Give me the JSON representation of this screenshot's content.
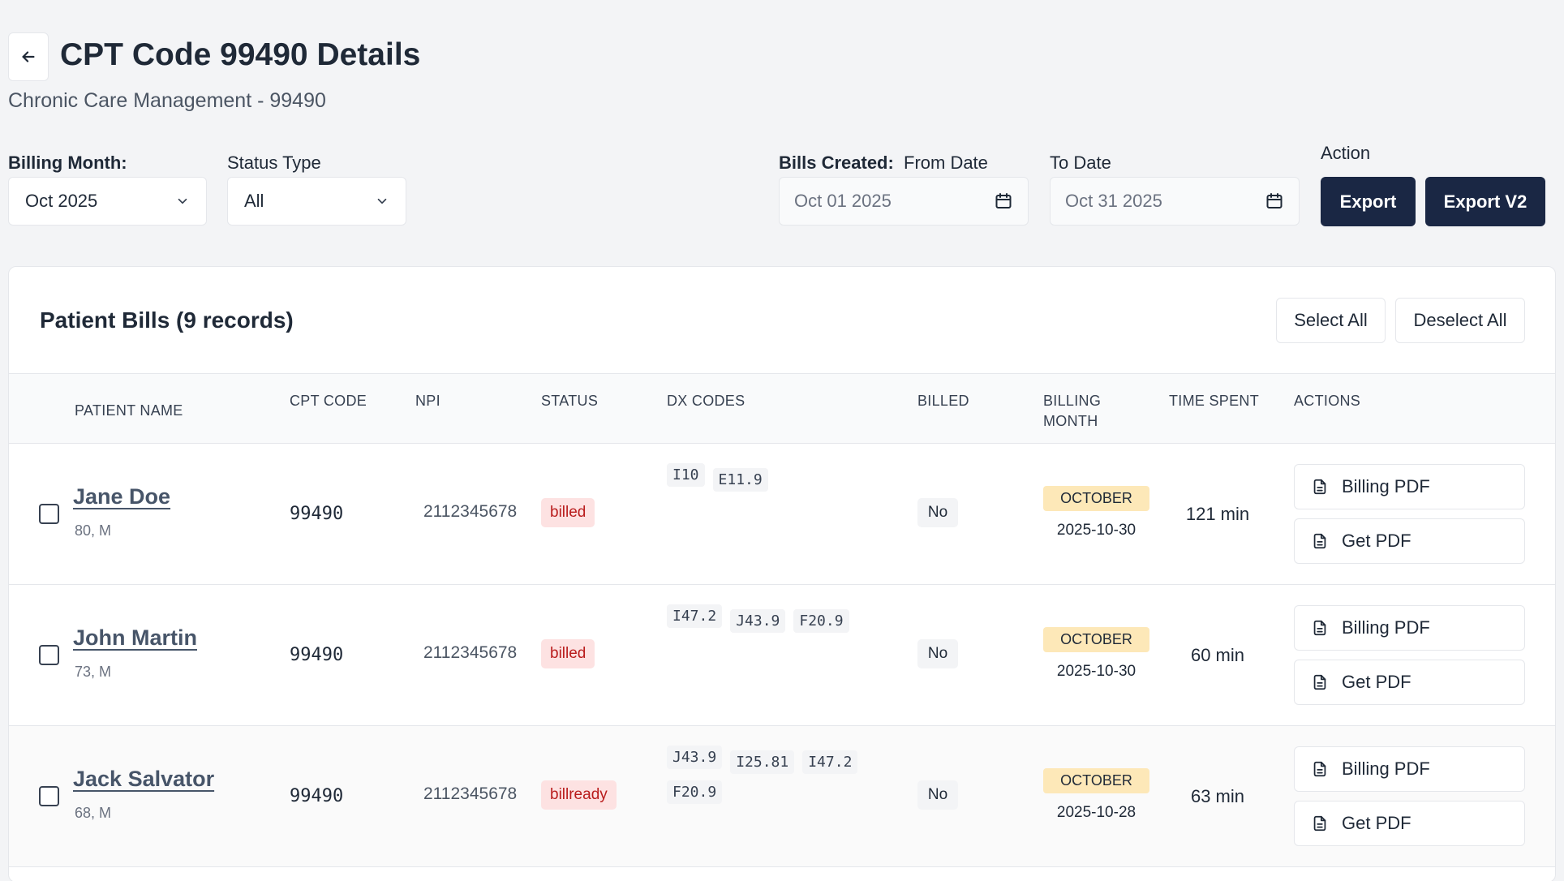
{
  "header": {
    "title": "CPT Code 99490 Details",
    "subtitle": "Chronic Care Management - 99490"
  },
  "filters": {
    "billing_month_label": "Billing Month:",
    "billing_month_value": "Oct 2025",
    "status_type_label": "Status Type",
    "status_type_value": "All",
    "bills_created_label": "Bills Created:",
    "from_date_label": "From Date",
    "from_date_value": "Oct 01 2025",
    "to_date_label": "To Date",
    "to_date_value": "Oct 31 2025",
    "action_label": "Action",
    "export_label": "Export",
    "export_v2_label": "Export V2"
  },
  "table": {
    "title": "Patient Bills (9 records)",
    "select_all_label": "Select All",
    "deselect_all_label": "Deselect All",
    "columns": {
      "patient_name": "PATIENT NAME",
      "cpt_code": "CPT CODE",
      "npi": "NPI",
      "status": "STATUS",
      "dx_codes": "DX CODES",
      "billed": "BILLED",
      "billing_month_1": "BILLING",
      "billing_month_2": "MONTH",
      "time_spent": "TIME SPENT",
      "actions": "ACTIONS"
    },
    "rows": [
      {
        "name": "Jane Doe",
        "meta": "80, M",
        "cpt": "99490",
        "npi": "2112345678",
        "status": "billed",
        "dx": [
          "I10",
          "E11.9"
        ],
        "billed": "No",
        "month": "OCTOBER",
        "date": "2025-10-30",
        "time": "121 min",
        "billing_pdf": "Billing PDF",
        "get_pdf": "Get PDF"
      },
      {
        "name": "John Martin",
        "meta": "73, M",
        "cpt": "99490",
        "npi": "2112345678",
        "status": "billed",
        "dx": [
          "I47.2",
          "J43.9",
          "F20.9"
        ],
        "billed": "No",
        "month": "OCTOBER",
        "date": "2025-10-30",
        "time": "60 min",
        "billing_pdf": "Billing PDF",
        "get_pdf": "Get PDF"
      },
      {
        "name": "Jack Salvator",
        "meta": "68, M",
        "cpt": "99490",
        "npi": "2112345678",
        "status": "billready",
        "dx": [
          "J43.9",
          "I25.81",
          "I47.2",
          "F20.9"
        ],
        "billed": "No",
        "month": "OCTOBER",
        "date": "2025-10-28",
        "time": "63 min",
        "billing_pdf": "Billing PDF",
        "get_pdf": "Get PDF"
      }
    ]
  },
  "icons": {
    "back": "arrow-left-icon",
    "dropdown": "chevron-down-icon",
    "calendar": "calendar-icon",
    "document": "document-icon"
  }
}
